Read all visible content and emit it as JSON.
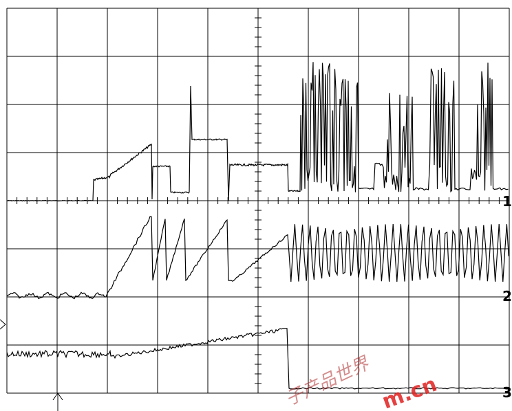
{
  "channel_markers": [
    "1",
    "2",
    "3"
  ],
  "watermark": {
    "text": "子产品世界",
    "url": "m.cn"
  }
}
